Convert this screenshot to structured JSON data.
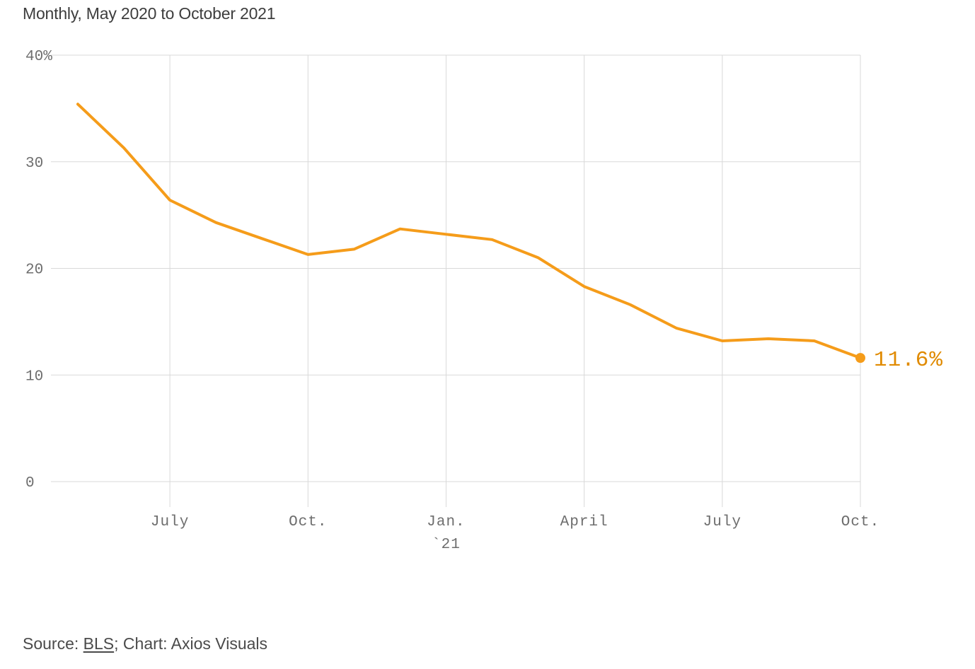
{
  "header": {
    "subtitle": "Monthly, May 2020 to October 2021"
  },
  "footer": {
    "source_prefix": "Source: ",
    "source_link": "BLS",
    "source_suffix": "; Chart: Axios Visuals"
  },
  "chart_data": {
    "type": "line",
    "x": [
      "2020-05",
      "2020-06",
      "2020-07",
      "2020-08",
      "2020-09",
      "2020-10",
      "2020-11",
      "2020-12",
      "2021-01",
      "2021-02",
      "2021-03",
      "2021-04",
      "2021-05",
      "2021-06",
      "2021-07",
      "2021-08",
      "2021-09",
      "2021-10"
    ],
    "series": [
      {
        "values": [
          35.4,
          31.3,
          26.4,
          24.3,
          22.8,
          21.3,
          21.8,
          23.7,
          23.2,
          22.7,
          21.0,
          18.3,
          16.6,
          14.4,
          13.2,
          13.4,
          13.2,
          11.6
        ]
      }
    ],
    "ylim": [
      0,
      40
    ],
    "y_ticks": [
      {
        "value": 0,
        "label": "0"
      },
      {
        "value": 10,
        "label": "10"
      },
      {
        "value": 20,
        "label": "20"
      },
      {
        "value": 30,
        "label": "30"
      },
      {
        "value": 40,
        "label": "40%"
      }
    ],
    "x_ticks": [
      {
        "month_index": 2,
        "label": "July",
        "sublabel": ""
      },
      {
        "month_index": 5,
        "label": "Oct.",
        "sublabel": ""
      },
      {
        "month_index": 8,
        "label": "Jan.",
        "sublabel": "`21"
      },
      {
        "month_index": 11,
        "label": "April",
        "sublabel": ""
      },
      {
        "month_index": 14,
        "label": "July",
        "sublabel": ""
      },
      {
        "month_index": 17,
        "label": "Oct.",
        "sublabel": ""
      }
    ],
    "end_label": "11.6%",
    "line_color": "#f59c1a",
    "label_color": "#e08a00",
    "grid": true
  }
}
